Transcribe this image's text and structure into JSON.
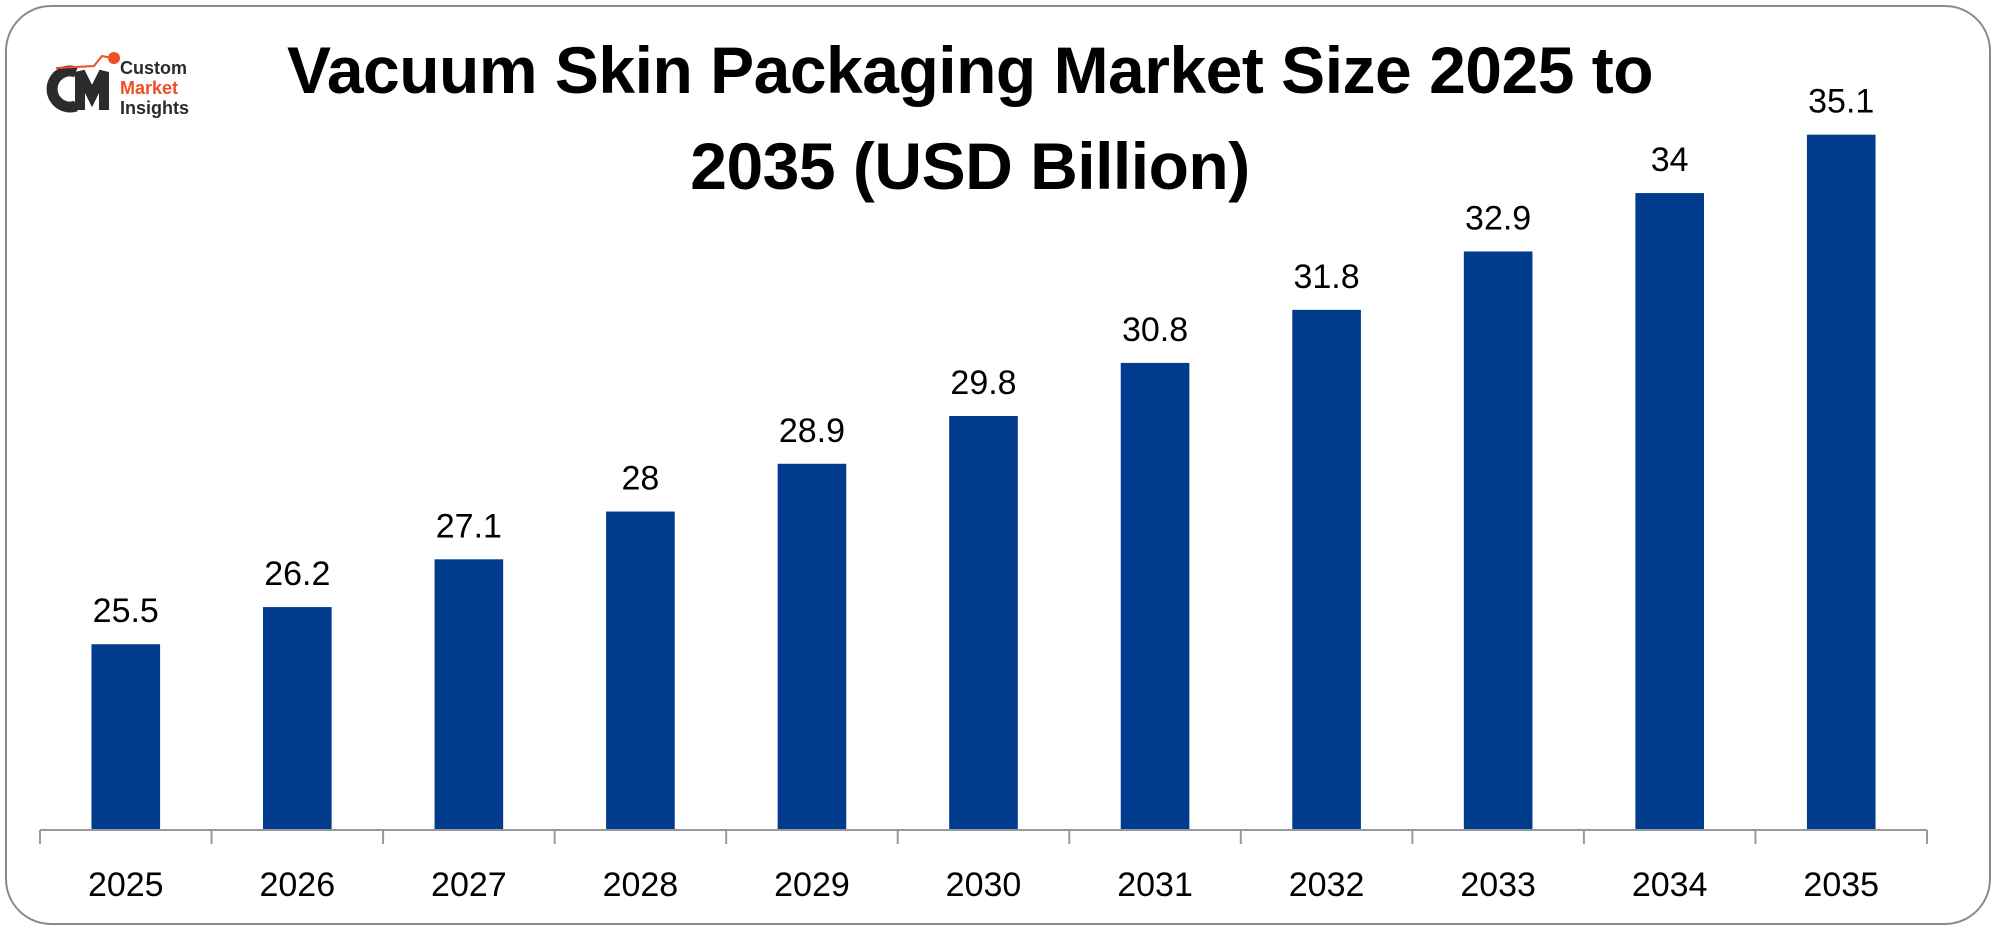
{
  "logo": {
    "line1": "Custom",
    "line2": "Market",
    "line3": "Insights",
    "accent": "#f04e23",
    "dark": "#2b2b2b"
  },
  "chart_data": {
    "type": "bar",
    "title": "Vacuum Skin Packaging Market Size 2025 to 2035 (USD Billion)",
    "title_lines": [
      "Vacuum Skin Packaging Market Size 2025 to",
      "2035 (USD Billion)"
    ],
    "categories": [
      "2025",
      "2026",
      "2027",
      "2028",
      "2029",
      "2030",
      "2031",
      "2032",
      "2033",
      "2034",
      "2035"
    ],
    "values": [
      25.5,
      26.2,
      27.1,
      28,
      28.9,
      29.8,
      30.8,
      31.8,
      32.9,
      34,
      35.1
    ],
    "xlabel": "",
    "ylabel": "",
    "ylim": [
      22,
      37.6
    ],
    "bar_color": "#003b8e",
    "grid": false,
    "data_labels": true
  }
}
